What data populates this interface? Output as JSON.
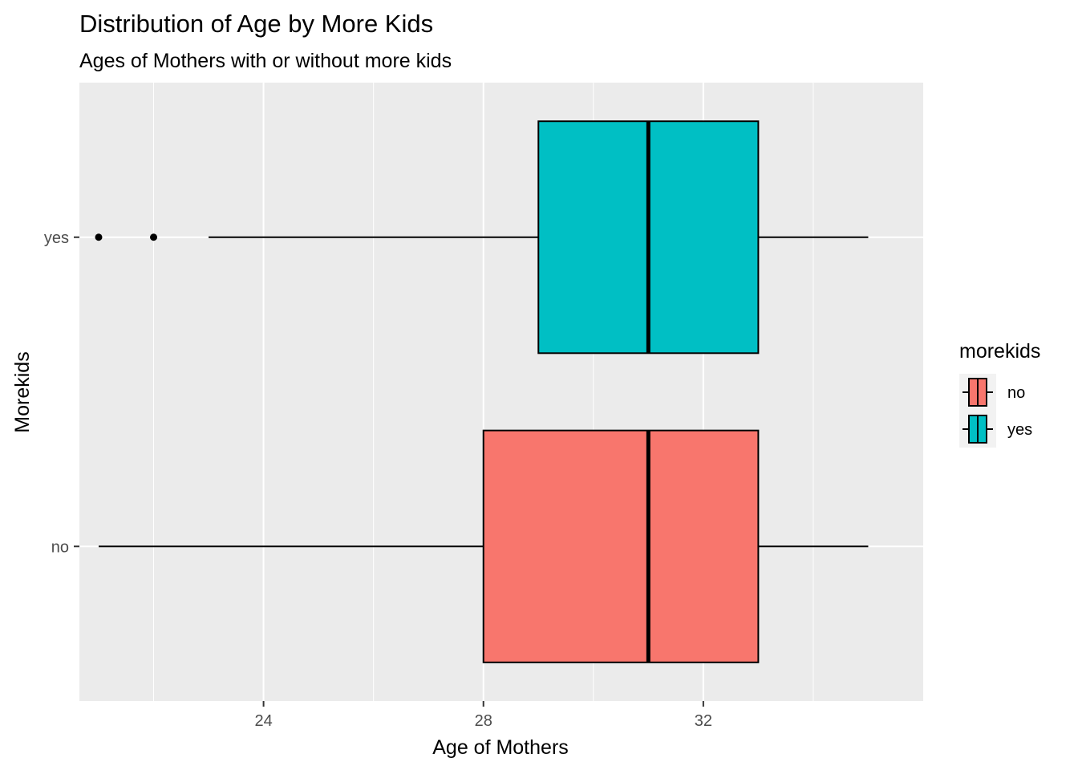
{
  "chart_data": {
    "type": "boxplot",
    "orientation": "horizontal",
    "title": "Distribution of Age by More Kids",
    "subtitle": "Ages of Mothers with or without more kids",
    "xlabel": "Age of Mothers",
    "ylabel": "Morekids",
    "xlim": [
      20.65,
      36.0
    ],
    "x_ticks": [
      24,
      28,
      32
    ],
    "x_tick_labels": [
      "24",
      "28",
      "32"
    ],
    "x_minor_gridlines": [
      22,
      26,
      30,
      34
    ],
    "categories": [
      "no",
      "yes"
    ],
    "grid": true,
    "legend": {
      "title": "morekids",
      "placement": "right",
      "entries": [
        "no",
        "yes"
      ]
    },
    "colors": {
      "no": "#F8766D",
      "yes": "#00BFC4",
      "panel": "#EBEBEB",
      "grid": "#FFFFFF"
    },
    "series": [
      {
        "category": "no",
        "whisker_low": 21,
        "q1": 28,
        "median": 31,
        "q3": 33,
        "whisker_high": 35,
        "outliers": []
      },
      {
        "category": "yes",
        "whisker_low": 23,
        "q1": 29,
        "median": 31,
        "q3": 33,
        "whisker_high": 35,
        "outliers": [
          21,
          22
        ]
      }
    ]
  }
}
